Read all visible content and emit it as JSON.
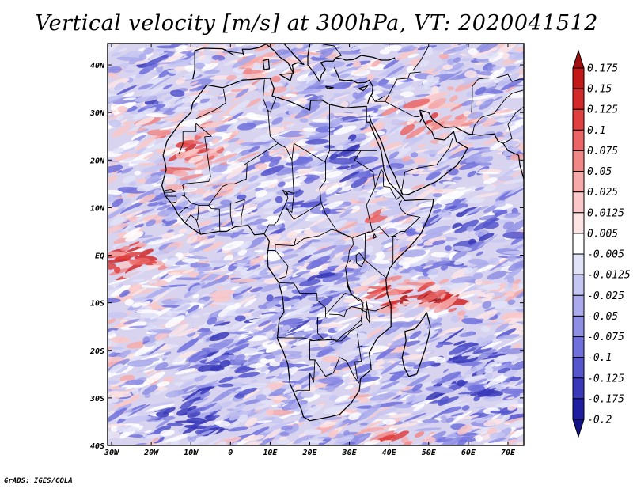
{
  "chart_data": {
    "type": "heatmap",
    "title": "Vertical velocity [m/s] at 300hPa, VT: 2020041512",
    "x_ticks": [
      "30W",
      "20W",
      "10W",
      "0",
      "10E",
      "20E",
      "30E",
      "40E",
      "50E",
      "60E",
      "70E"
    ],
    "x_values": [
      -30,
      -20,
      -10,
      0,
      10,
      20,
      30,
      40,
      50,
      60,
      70
    ],
    "y_ticks": [
      "40N",
      "30N",
      "20N",
      "10N",
      "EQ",
      "10S",
      "20S",
      "30S",
      "40S"
    ],
    "y_values": [
      40,
      30,
      20,
      10,
      0,
      -10,
      -20,
      -30,
      -40
    ],
    "xlim": [
      -31,
      74
    ],
    "ylim": [
      -40,
      44.5
    ],
    "colorbar": {
      "labels": [
        "0.175",
        "0.15",
        "0.125",
        "0.1",
        "0.075",
        "0.05",
        "0.025",
        "0.0125",
        "0.005",
        "-0.005",
        "-0.0125",
        "-0.025",
        "-0.05",
        "-0.075",
        "-0.1",
        "-0.125",
        "-0.175",
        "-0.2"
      ],
      "colors": [
        "#a01010",
        "#c21818",
        "#d22a2a",
        "#e04040",
        "#ea6565",
        "#f08888",
        "#f6aaaa",
        "#fac8c8",
        "#fde5e5",
        "#ffffff",
        "#e2e2f8",
        "#c6c6f2",
        "#aaaaec",
        "#8e8ee4",
        "#7070dc",
        "#5555cc",
        "#3838b8",
        "#1e1ea0",
        "#12128a"
      ]
    },
    "field_description": "Alternating rising (red) and sinking (blue) vertical velocity over Africa and surrounding oceans"
  },
  "footer": {
    "credit": "GrADS: IGES/COLA"
  }
}
